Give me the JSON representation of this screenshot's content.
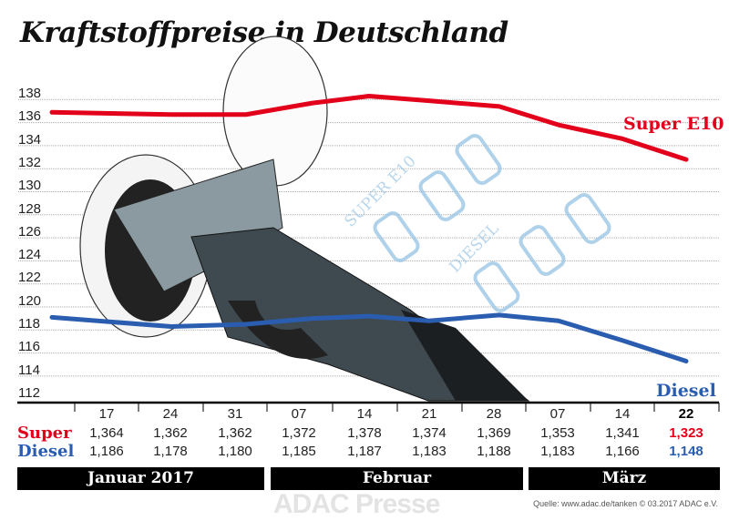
{
  "title": "Kraftstoffpreise in Deutschland",
  "chart_data": {
    "type": "line",
    "title": "Kraftstoffpreise in Deutschland",
    "x": [
      "17",
      "24",
      "31",
      "07",
      "14",
      "21",
      "28",
      "07",
      "14",
      "22"
    ],
    "yticks": [
      138,
      136,
      134,
      132,
      130,
      128,
      126,
      124,
      122,
      120,
      118,
      116,
      114,
      112
    ],
    "ylim": [
      112,
      138
    ],
    "grid": true,
    "series": [
      {
        "name": "Super E10",
        "color": "#e3001b",
        "values": [
          136.4,
          136.2,
          136.2,
          137.2,
          137.8,
          137.4,
          136.9,
          135.3,
          134.1,
          132.3
        ]
      },
      {
        "name": "Diesel",
        "color": "#2a5db0",
        "values": [
          118.6,
          117.8,
          118.0,
          118.5,
          118.7,
          118.3,
          118.8,
          118.3,
          116.6,
          114.8
        ]
      }
    ]
  },
  "table": {
    "dates": [
      "17",
      "24",
      "31",
      "07",
      "14",
      "21",
      "28",
      "07",
      "14",
      "22"
    ],
    "super_label": "Super",
    "diesel_label": "Diesel",
    "super": [
      "1,364",
      "1,362",
      "1,362",
      "1,372",
      "1,378",
      "1,374",
      "1,369",
      "1,353",
      "1,341",
      "1,323"
    ],
    "diesel": [
      "1,186",
      "1,178",
      "1,180",
      "1,185",
      "1,187",
      "1,183",
      "1,188",
      "1,183",
      "1,166",
      "1,148"
    ]
  },
  "months": [
    "Januar 2017",
    "Februar",
    "März"
  ],
  "watermark": "ADAC Presse",
  "illustration": {
    "text1": "SUPER E10",
    "text2": "DIESEL"
  },
  "source": "Quelle: www.adac.de/tanken   © 03.2017  ADAC e.V."
}
